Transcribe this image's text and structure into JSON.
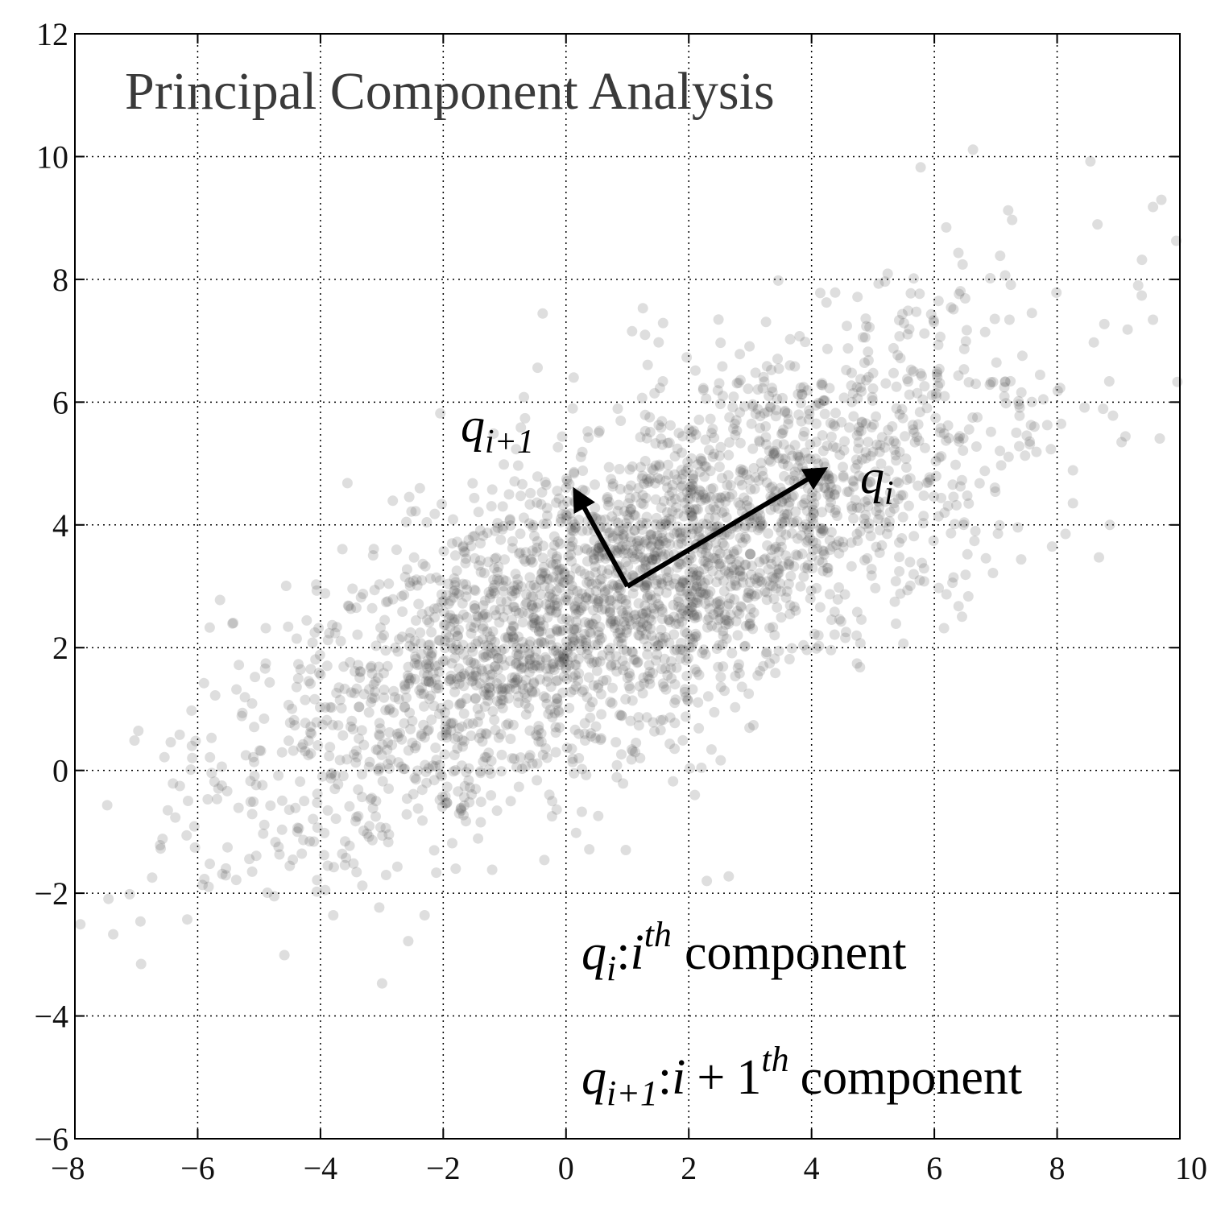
{
  "chart_data": {
    "type": "scatter",
    "title": "Principal Component Analysis",
    "xlabel": "",
    "ylabel": "",
    "xlim": [
      -8,
      10
    ],
    "ylim": [
      -6,
      12
    ],
    "xticks": [
      -8,
      -6,
      -4,
      -2,
      0,
      2,
      4,
      6,
      8,
      10
    ],
    "yticks": [
      -6,
      -4,
      -2,
      0,
      2,
      4,
      6,
      8,
      10,
      12
    ],
    "xtick_labels": [
      "−8",
      "−6",
      "−4",
      "−2",
      "0",
      "2",
      "4",
      "6",
      "8",
      "10"
    ],
    "ytick_labels": [
      "−6",
      "−4",
      "−2",
      "0",
      "2",
      "4",
      "6",
      "8",
      "10",
      "12"
    ],
    "grid": true,
    "point_color": "#4a4a4a",
    "distribution": {
      "n_points": 3000,
      "mean": [
        1.0,
        3.0
      ],
      "principal_axis_direction": [
        0.866,
        0.5
      ],
      "principal_std": 3.4,
      "secondary_std": 1.2
    },
    "vectors": [
      {
        "label_main": "q",
        "label_sub": "i",
        "from": [
          1.0,
          3.0
        ],
        "to": [
          4.2,
          4.9
        ]
      },
      {
        "label_main": "q",
        "label_sub": "i+1",
        "from": [
          1.0,
          3.0
        ],
        "to": [
          0.15,
          4.55
        ]
      }
    ],
    "legend_lines": [
      {
        "q": "q",
        "sub": "i",
        "colon": ":",
        "var": "i",
        "plus": "",
        "num": "",
        "sup": "th",
        "word": "component"
      },
      {
        "q": "q",
        "sub": "i+1",
        "colon": ":",
        "var": "i",
        "plus": "+",
        "num": "1",
        "sup": "th",
        "word": "component"
      }
    ]
  }
}
